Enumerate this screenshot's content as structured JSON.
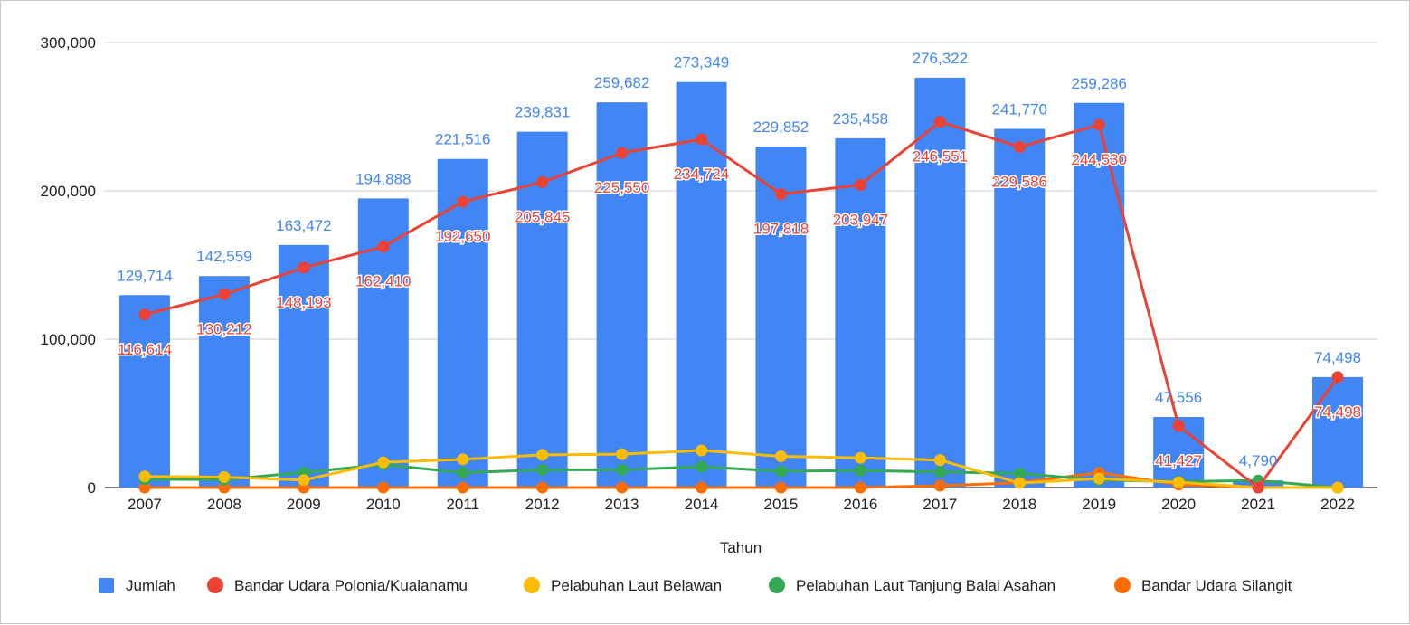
{
  "chart_data": {
    "type": "bar",
    "xlabel": "Tahun",
    "ylabel": "",
    "ylim": [
      0,
      300000
    ],
    "yticks": [
      "0",
      "100,000",
      "200,000",
      "300,000"
    ],
    "grid": true,
    "legend_position": "bottom",
    "categories": [
      "2007",
      "2008",
      "2009",
      "2010",
      "2011",
      "2012",
      "2013",
      "2014",
      "2015",
      "2016",
      "2017",
      "2018",
      "2019",
      "2020",
      "2021",
      "2022"
    ],
    "series": [
      {
        "name": "Jumlah",
        "kind": "bar",
        "color": "#4285f4",
        "values": [
          129714,
          142559,
          163472,
          194888,
          221516,
          239831,
          259682,
          273349,
          229852,
          235458,
          276322,
          241770,
          259286,
          47556,
          4790,
          74498
        ],
        "labels": [
          "129,714",
          "142,559",
          "163,472",
          "194,888",
          "221,516",
          "239,831",
          "259,682",
          "273,349",
          "229,852",
          "235,458",
          "276,322",
          "241,770",
          "259,286",
          "47,556",
          "4,790",
          "74,498"
        ]
      },
      {
        "name": "Bandar Udara Polonia/Kualanamu",
        "kind": "line",
        "color": "#ea4335",
        "values": [
          116614,
          130212,
          148193,
          162410,
          192650,
          205845,
          225550,
          234724,
          197818,
          203947,
          246551,
          229586,
          244530,
          41427,
          0,
          74498
        ],
        "labels": [
          "116,614",
          "130,212",
          "148,193",
          "162,410",
          "192,650",
          "205,845",
          "225,550",
          "234,724",
          "197,818",
          "203,947",
          "246,551",
          "229,586",
          "244,530",
          "41,427",
          "",
          "74,498"
        ]
      },
      {
        "name": "Pelabuhan Laut Belawan",
        "kind": "line",
        "color": "#fbbc04",
        "values": [
          7500,
          7000,
          5000,
          17000,
          19000,
          22000,
          22500,
          25000,
          21000,
          20000,
          18500,
          3000,
          6000,
          3500,
          100,
          0
        ]
      },
      {
        "name": "Pelabuhan Laut Tanjung Balai Asahan",
        "kind": "line",
        "color": "#34a853",
        "values": [
          5600,
          5300,
          10200,
          15500,
          10000,
          12000,
          12000,
          14000,
          11000,
          11500,
          10500,
          9500,
          5000,
          4000,
          4700,
          0
        ]
      },
      {
        "name": "Bandar Udara Silangit",
        "kind": "line",
        "color": "#ff6d01",
        "values": [
          0,
          0,
          0,
          0,
          0,
          0,
          0,
          0,
          0,
          0,
          1200,
          3300,
          10000,
          2000,
          0,
          0
        ]
      }
    ]
  }
}
